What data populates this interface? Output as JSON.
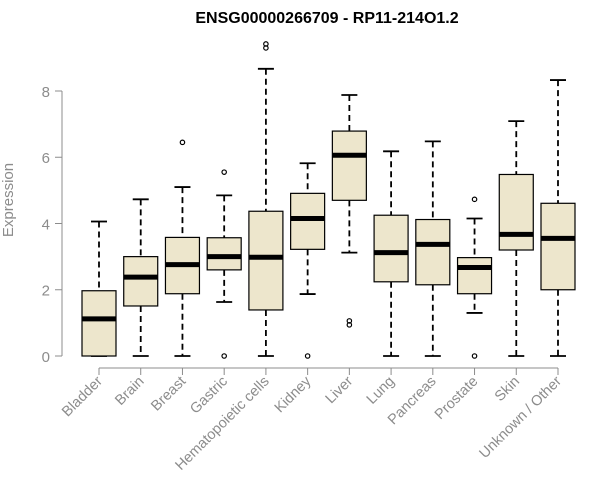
{
  "chart_data": {
    "type": "box",
    "title": "ENSG00000266709 - RP11-214O1.2",
    "xlabel": "",
    "ylabel": "Expression",
    "ylim": [
      -0.3,
      9.5
    ],
    "yticks": [
      0,
      2,
      4,
      6,
      8
    ],
    "grid": false,
    "legend": "none",
    "colors": {
      "box_fill": "#ede6cc",
      "box_stroke": "#000000",
      "axis": "#8c8c8c"
    },
    "categories": [
      "Bladder",
      "Brain",
      "Breast",
      "Gastric",
      "Hematopoietic cells",
      "Kidney",
      "Liver",
      "Lung",
      "Pancreas",
      "Prostate",
      "Skin",
      "Unknown / Other"
    ],
    "boxes": [
      {
        "category": "Bladder",
        "whisker_low": 0.0,
        "q1": 0.0,
        "median": 1.12,
        "q3": 1.97,
        "whisker_high": 4.06,
        "outliers": []
      },
      {
        "category": "Brain",
        "whisker_low": 0.0,
        "q1": 1.51,
        "median": 2.38,
        "q3": 3.0,
        "whisker_high": 4.73,
        "outliers": []
      },
      {
        "category": "Breast",
        "whisker_low": 0.0,
        "q1": 1.88,
        "median": 2.76,
        "q3": 3.58,
        "whisker_high": 5.1,
        "outliers": [
          6.45
        ]
      },
      {
        "category": "Gastric",
        "whisker_low": 1.63,
        "q1": 2.6,
        "median": 3.0,
        "q3": 3.57,
        "whisker_high": 4.85,
        "outliers": [
          5.55,
          0.0
        ]
      },
      {
        "category": "Hematopoietic cells",
        "whisker_low": 0.0,
        "q1": 1.39,
        "median": 2.98,
        "q3": 4.37,
        "whisker_high": 8.67,
        "outliers": [
          9.3,
          9.42
        ]
      },
      {
        "category": "Kidney",
        "whisker_low": 1.87,
        "q1": 3.22,
        "median": 4.15,
        "q3": 4.91,
        "whisker_high": 5.82,
        "outliers": [
          0.0
        ]
      },
      {
        "category": "Liver",
        "whisker_low": 3.12,
        "q1": 4.7,
        "median": 6.06,
        "q3": 6.79,
        "whisker_high": 7.88,
        "outliers": [
          1.06,
          0.94
        ]
      },
      {
        "category": "Lung",
        "whisker_low": 0.0,
        "q1": 2.24,
        "median": 3.12,
        "q3": 4.25,
        "whisker_high": 6.18,
        "outliers": []
      },
      {
        "category": "Pancreas",
        "whisker_low": 0.0,
        "q1": 2.15,
        "median": 3.37,
        "q3": 4.12,
        "whisker_high": 6.48,
        "outliers": []
      },
      {
        "category": "Prostate",
        "whisker_low": 1.3,
        "q1": 1.88,
        "median": 2.67,
        "q3": 2.97,
        "whisker_high": 4.15,
        "outliers": [
          4.73,
          0.0
        ]
      },
      {
        "category": "Skin",
        "whisker_low": 0.0,
        "q1": 3.2,
        "median": 3.67,
        "q3": 5.48,
        "whisker_high": 7.09,
        "outliers": []
      },
      {
        "category": "Unknown / Other",
        "whisker_low": 0.0,
        "q1": 2.0,
        "median": 3.55,
        "q3": 4.61,
        "whisker_high": 8.33,
        "outliers": []
      }
    ]
  }
}
